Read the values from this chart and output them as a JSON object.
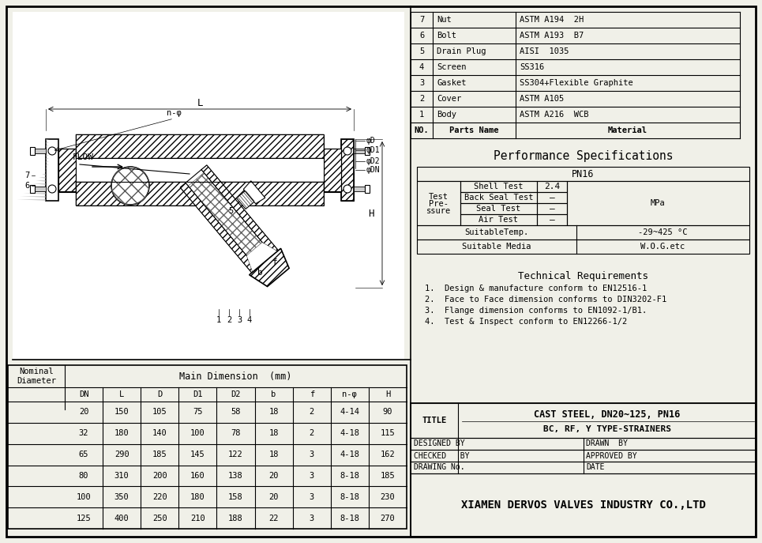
{
  "bg_color": "#f0f0e8",
  "border_color": "#000000",
  "parts_table": {
    "headers": [
      "NO.",
      "Parts Name",
      "Material"
    ],
    "rows": [
      [
        "7",
        "Nut",
        "ASTM A194  2H"
      ],
      [
        "6",
        "Bolt",
        "ASTM A193  B7"
      ],
      [
        "5",
        "Drain Plug",
        "AISI  1035"
      ],
      [
        "4",
        "Screen",
        "SS316"
      ],
      [
        "3",
        "Gasket",
        "SS304+Flexible Graphite"
      ],
      [
        "2",
        "Cover",
        "ASTM A105"
      ],
      [
        "1",
        "Body",
        "ASTM A216  WCB"
      ]
    ]
  },
  "perf_title": "Performance Specifications",
  "perf_table": {
    "pn": "PN16",
    "shell_test": "2.4",
    "back_seal_test": "—",
    "seal_test": "—",
    "air_test": "—",
    "mpa": "MPa",
    "suitable_temp": "-29~425 °C",
    "suitable_media": "W.O.G.etc"
  },
  "tech_req_title": "Technical Requirements",
  "tech_req": [
    "1.  Design & manufacture conform to EN12516-1",
    "2.  Face to Face dimension conforms to DIN3202-F1",
    "3.  Flange dimension conforms to EN1092-1/B1.",
    "4.  Test & Inspect conform to EN12266-1/2"
  ],
  "dim_table": {
    "title": "Main Dimension  (mm)",
    "headers": [
      "DN",
      "L",
      "D",
      "D1",
      "D2",
      "b",
      "f",
      "n-φ",
      "H"
    ],
    "nominal_header": "Nominal\nDiameter",
    "rows": [
      [
        "20",
        "150",
        "105",
        "75",
        "58",
        "18",
        "2",
        "4-14",
        "90"
      ],
      [
        "32",
        "180",
        "140",
        "100",
        "78",
        "18",
        "2",
        "4-18",
        "115"
      ],
      [
        "65",
        "290",
        "185",
        "145",
        "122",
        "18",
        "3",
        "4-18",
        "162"
      ],
      [
        "80",
        "310",
        "200",
        "160",
        "138",
        "20",
        "3",
        "8-18",
        "185"
      ],
      [
        "100",
        "350",
        "220",
        "180",
        "158",
        "20",
        "3",
        "8-18",
        "230"
      ],
      [
        "125",
        "400",
        "250",
        "210",
        "188",
        "22",
        "3",
        "8-18",
        "270"
      ]
    ]
  },
  "title_block": {
    "title_label": "TITLE",
    "line1": "CAST STEEL, DN20~125, PN16",
    "line2": "BC, RF, Y TYPE-STRAINERS",
    "designed_by": "DESIGNED BY",
    "drawn_by": "DRAWN  BY",
    "checked_by": "CHECKED   BY",
    "approved_by": "APPROVED BY",
    "drawing_no": "DRAWING No.",
    "date": "DATE",
    "company": "XIAMEN DERVOS VALVES INDUSTRY CO.,LTD"
  }
}
